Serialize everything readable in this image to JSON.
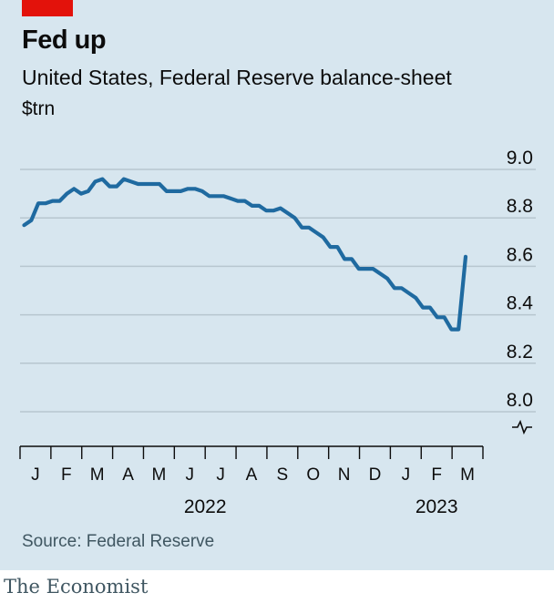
{
  "header": {
    "title": "Fed up",
    "subtitle": "United States, Federal Reserve balance-sheet",
    "unit": "$trn"
  },
  "footer": {
    "source": "Source: Federal Reserve",
    "brand": "The Economist"
  },
  "colors": {
    "accent": "#e3120b",
    "line": "#1f6aa0",
    "panel": "#d7e6ef",
    "grid": "#b7c6cf"
  },
  "chart_data": {
    "type": "line",
    "title": "Fed up",
    "subtitle": "United States, Federal Reserve balance-sheet",
    "ylabel": "$trn",
    "ylim": [
      8.0,
      9.0
    ],
    "y_ticks": [
      "9.0",
      "8.8",
      "8.6",
      "8.4",
      "8.2",
      "8.0"
    ],
    "y_axis_break": true,
    "grid": true,
    "x_months": [
      "J",
      "F",
      "M",
      "A",
      "M",
      "J",
      "J",
      "A",
      "S",
      "O",
      "N",
      "D",
      "J",
      "F",
      "M"
    ],
    "x_years": [
      "2022",
      "2023"
    ],
    "series": [
      {
        "color": "#1f6aa0",
        "x": [
          "2022-01-05",
          "2022-01-12",
          "2022-01-19",
          "2022-01-26",
          "2022-02-02",
          "2022-02-09",
          "2022-02-16",
          "2022-02-23",
          "2022-03-02",
          "2022-03-09",
          "2022-03-16",
          "2022-03-23",
          "2022-03-30",
          "2022-04-06",
          "2022-04-13",
          "2022-04-20",
          "2022-04-27",
          "2022-05-04",
          "2022-05-11",
          "2022-05-18",
          "2022-05-25",
          "2022-06-01",
          "2022-06-08",
          "2022-06-15",
          "2022-06-22",
          "2022-06-29",
          "2022-07-06",
          "2022-07-13",
          "2022-07-20",
          "2022-07-27",
          "2022-08-03",
          "2022-08-10",
          "2022-08-17",
          "2022-08-24",
          "2022-08-31",
          "2022-09-07",
          "2022-09-14",
          "2022-09-21",
          "2022-09-28",
          "2022-10-05",
          "2022-10-12",
          "2022-10-19",
          "2022-10-26",
          "2022-11-02",
          "2022-11-09",
          "2022-11-16",
          "2022-11-23",
          "2022-11-30",
          "2022-12-07",
          "2022-12-14",
          "2022-12-21",
          "2022-12-28",
          "2023-01-04",
          "2023-01-11",
          "2023-01-18",
          "2023-01-25",
          "2023-02-01",
          "2023-02-08",
          "2023-02-15",
          "2023-02-22",
          "2023-03-01",
          "2023-03-08",
          "2023-03-15"
        ],
        "values": [
          8.77,
          8.79,
          8.86,
          8.86,
          8.87,
          8.87,
          8.9,
          8.92,
          8.9,
          8.91,
          8.95,
          8.96,
          8.93,
          8.93,
          8.96,
          8.95,
          8.94,
          8.94,
          8.94,
          8.94,
          8.91,
          8.91,
          8.91,
          8.92,
          8.92,
          8.91,
          8.89,
          8.89,
          8.89,
          8.88,
          8.87,
          8.87,
          8.85,
          8.85,
          8.83,
          8.83,
          8.84,
          8.82,
          8.8,
          8.76,
          8.76,
          8.74,
          8.72,
          8.68,
          8.68,
          8.63,
          8.63,
          8.59,
          8.59,
          8.59,
          8.57,
          8.55,
          8.51,
          8.51,
          8.49,
          8.47,
          8.43,
          8.43,
          8.39,
          8.39,
          8.34,
          8.34,
          8.64
        ]
      }
    ]
  }
}
